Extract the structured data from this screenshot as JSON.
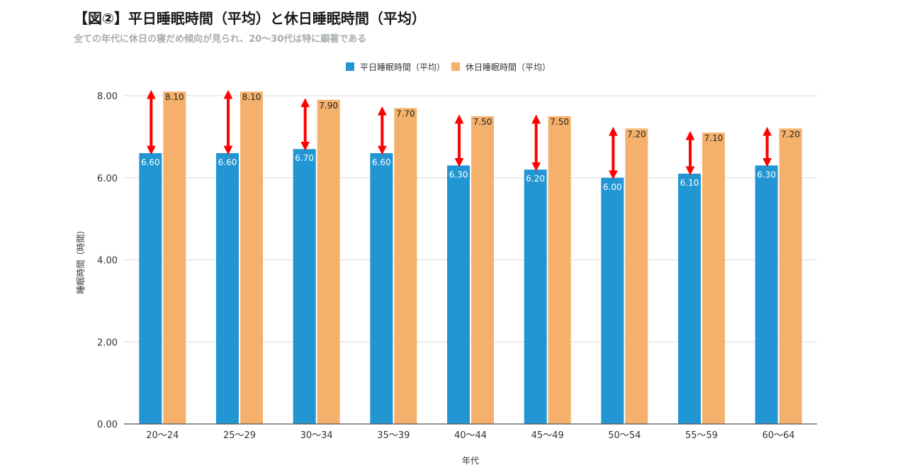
{
  "title": "【図②】平日睡眠時間（平均）と休日睡眠時間（平均）",
  "subtitle": "全ての年代に休日の寝だめ傾向が見られ、20〜30代は特に顕著である",
  "chart_data": {
    "type": "bar",
    "xlabel": "年代",
    "ylabel": "睡眠時間（時間）",
    "ylim": [
      0,
      8
    ],
    "yticks": [
      "0.00",
      "2.00",
      "4.00",
      "6.00",
      "8.00"
    ],
    "grid": true,
    "legend_position": "top",
    "categories": [
      "20〜24",
      "25〜29",
      "30〜34",
      "35〜39",
      "40〜44",
      "45〜49",
      "50〜54",
      "55〜59",
      "60〜64"
    ],
    "series": [
      {
        "name": "平日睡眠時間（平均）",
        "color": "#2196d3",
        "values": [
          6.6,
          6.6,
          6.7,
          6.6,
          6.3,
          6.2,
          6.0,
          6.1,
          6.3
        ],
        "labels": [
          "6.60",
          "6.60",
          "6.70",
          "6.60",
          "6.30",
          "6.20",
          "6.00",
          "6.10",
          "6.30"
        ]
      },
      {
        "name": "休日睡眠時間（平均）",
        "color": "#f5b16b",
        "values": [
          8.1,
          8.1,
          7.9,
          7.7,
          7.5,
          7.5,
          7.2,
          7.1,
          7.2
        ],
        "labels": [
          "8.10",
          "8.10",
          "7.90",
          "7.70",
          "7.50",
          "7.50",
          "7.20",
          "7.10",
          "7.20"
        ]
      }
    ],
    "annotations": {
      "type": "double-arrow",
      "color": "#ff0000"
    }
  }
}
